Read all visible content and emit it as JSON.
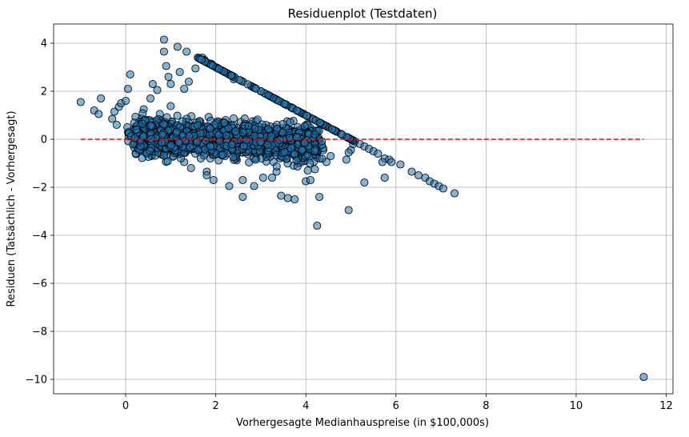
{
  "chart_data": {
    "type": "scatter",
    "title": "Residuenplot (Testdaten)",
    "xlabel": "Vorhergesagte Medianhauspreise (in $100,000s)",
    "ylabel": "Residuen (Tatsächlich - Vorhergesagt)",
    "xlim": [
      -1.6,
      12.15
    ],
    "ylim": [
      -10.6,
      4.8
    ],
    "xticks": [
      0,
      2,
      4,
      6,
      8,
      10,
      12
    ],
    "yticks": [
      -10,
      -8,
      -6,
      -4,
      -2,
      0,
      2,
      4
    ],
    "grid": true,
    "point_color": "#1f77b4",
    "point_edge_color": "#000000",
    "point_alpha": 0.55,
    "reference_line": {
      "y": 0,
      "x_range": [
        -1.0,
        11.5
      ],
      "color": "#ff0000",
      "style": "dashed"
    },
    "cap_line": {
      "slope": -1,
      "intercept": 5.0,
      "x_range": [
        1.6,
        7.3
      ]
    },
    "points": [
      [
        -1.0,
        1.55
      ],
      [
        -0.7,
        1.2
      ],
      [
        -0.6,
        1.05
      ],
      [
        -0.55,
        1.7
      ],
      [
        -0.3,
        0.85
      ],
      [
        -0.25,
        1.15
      ],
      [
        -0.2,
        0.6
      ],
      [
        -0.15,
        1.35
      ],
      [
        -0.1,
        1.5
      ],
      [
        0.0,
        1.6
      ],
      [
        0.05,
        2.1
      ],
      [
        0.1,
        2.7
      ],
      [
        0.6,
        2.3
      ],
      [
        0.7,
        2.05
      ],
      [
        0.85,
        4.15
      ],
      [
        0.85,
        3.65
      ],
      [
        0.9,
        3.05
      ],
      [
        0.95,
        2.6
      ],
      [
        1.15,
        3.85
      ],
      [
        1.2,
        2.8
      ],
      [
        1.35,
        3.65
      ],
      [
        1.4,
        2.4
      ],
      [
        1.7,
        3.4
      ],
      [
        1.75,
        3.3
      ],
      [
        1.9,
        3.15
      ],
      [
        1.0,
        2.3
      ],
      [
        1.3,
        2.1
      ],
      [
        1.55,
        2.95
      ],
      [
        0.55,
        1.7
      ],
      [
        0.4,
        1.25
      ],
      [
        3.0,
        2.0
      ],
      [
        3.2,
        1.8
      ],
      [
        2.4,
        2.5
      ],
      [
        2.8,
        2.2
      ],
      [
        5.2,
        -0.2
      ],
      [
        5.3,
        -0.3
      ],
      [
        5.4,
        -0.4
      ],
      [
        5.5,
        -0.5
      ],
      [
        5.6,
        -0.6
      ],
      [
        5.75,
        -0.8
      ],
      [
        5.85,
        -0.85
      ],
      [
        5.9,
        -0.95
      ],
      [
        6.1,
        -1.05
      ],
      [
        6.35,
        -1.35
      ],
      [
        6.5,
        -1.5
      ],
      [
        6.65,
        -1.6
      ],
      [
        6.75,
        -1.75
      ],
      [
        6.85,
        -1.85
      ],
      [
        6.95,
        -1.95
      ],
      [
        7.05,
        -2.05
      ],
      [
        7.3,
        -2.25
      ],
      [
        5.7,
        -0.95
      ],
      [
        5.75,
        -1.6
      ],
      [
        5.3,
        -1.8
      ],
      [
        5.0,
        -0.45
      ],
      [
        5.05,
        -0.2
      ],
      [
        4.9,
        -0.85
      ],
      [
        4.95,
        -0.55
      ],
      [
        4.55,
        -0.7
      ],
      [
        4.25,
        -0.55
      ],
      [
        1.3,
        -0.95
      ],
      [
        1.45,
        -1.2
      ],
      [
        1.8,
        -1.35
      ],
      [
        1.8,
        -1.5
      ],
      [
        1.95,
        -1.7
      ],
      [
        2.3,
        -1.95
      ],
      [
        2.6,
        -1.7
      ],
      [
        2.85,
        -1.95
      ],
      [
        3.35,
        -1.35
      ],
      [
        3.05,
        -1.6
      ],
      [
        3.25,
        -1.6
      ],
      [
        2.6,
        -2.4
      ],
      [
        3.45,
        -2.35
      ],
      [
        3.6,
        -2.45
      ],
      [
        3.75,
        -2.5
      ],
      [
        4.0,
        -1.75
      ],
      [
        4.1,
        -1.7
      ],
      [
        4.2,
        -1.25
      ],
      [
        4.3,
        -2.4
      ],
      [
        4.25,
        -3.6
      ],
      [
        4.95,
        -2.95
      ],
      [
        11.5,
        -9.9
      ]
    ]
  }
}
